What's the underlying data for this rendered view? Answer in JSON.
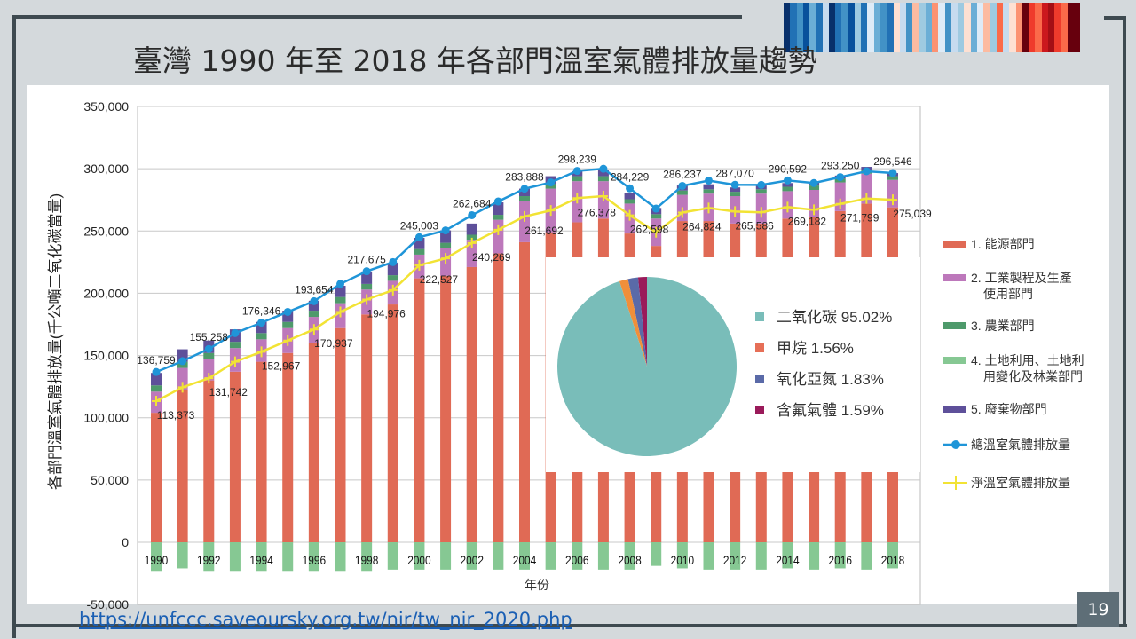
{
  "slide": {
    "title": "臺灣 1990 年至 2018 年各部門溫室氣體排放量趨勢",
    "source_url": "https://unfccc.saveoursky.org.tw/nir/tw_nir_2020.php",
    "page_number": "19",
    "warming_stripes_colors": [
      "#08306b",
      "#2171b5",
      "#4292c6",
      "#08519c",
      "#6baed6",
      "#2171b5",
      "#c6dbef",
      "#08306b",
      "#2171b5",
      "#4292c6",
      "#08519c",
      "#9ecae1",
      "#2171b5",
      "#deebf7",
      "#6baed6",
      "#4292c6",
      "#2171b5",
      "#fee0d2",
      "#c6dbef",
      "#4292c6",
      "#fcbba1",
      "#9ecae1",
      "#6baed6",
      "#fc9272",
      "#deebf7",
      "#4292c6",
      "#c6dbef",
      "#9ecae1",
      "#fee0d2",
      "#6baed6",
      "#deebf7",
      "#fcbba1",
      "#9ecae1",
      "#fb6a4a",
      "#c6dbef",
      "#fee0d2",
      "#fc9272",
      "#67000d",
      "#ef3b2c",
      "#fb6a4a",
      "#cb181d",
      "#a50f15",
      "#ef3b2c",
      "#fb6a4a",
      "#67000d",
      "#67000d"
    ]
  },
  "chart_data": {
    "type": "bar",
    "stacked": true,
    "title": "",
    "xlabel": "年份",
    "ylabel": "各部門溫室氣體排放量(千公噸二氧化碳當量)",
    "ylim": [
      -50000,
      350000
    ],
    "yticks": [
      -50000,
      0,
      50000,
      100000,
      150000,
      200000,
      250000,
      300000,
      350000
    ],
    "ytick_labels": [
      "-50,000",
      "0",
      "50,000",
      "100,000",
      "150,000",
      "200,000",
      "250,000",
      "300,000",
      "350,000"
    ],
    "grid": true,
    "legend_position": "right",
    "categories": [
      1990,
      1991,
      1992,
      1993,
      1994,
      1995,
      1996,
      1997,
      1998,
      1999,
      2000,
      2001,
      2002,
      2003,
      2004,
      2005,
      2006,
      2007,
      2008,
      2009,
      2010,
      2011,
      2012,
      2013,
      2014,
      2015,
      2016,
      2017,
      2018
    ],
    "xtick_labels": [
      "1990",
      "1992",
      "1994",
      "1996",
      "1998",
      "2000",
      "2002",
      "2004",
      "2006",
      "2008",
      "2010",
      "2012",
      "2014",
      "2016",
      "2018"
    ],
    "series": [
      {
        "name": "1. 能源部門",
        "color": "#e06a55",
        "type": "bar",
        "values": [
          104000,
          122000,
          130000,
          137000,
          145000,
          152000,
          160000,
          172000,
          183000,
          191000,
          212000,
          214000,
          221000,
          232000,
          241000,
          249000,
          257000,
          260000,
          248000,
          238000,
          258000,
          258000,
          256000,
          256000,
          260000,
          261000,
          266000,
          272000,
          269000
        ]
      },
      {
        "name": "2. 工業製程及生產使用部門",
        "color": "#bd78bb",
        "type": "bar",
        "values": [
          17000,
          18000,
          17000,
          19000,
          18000,
          20000,
          21000,
          20000,
          20000,
          19000,
          19000,
          22000,
          22000,
          27000,
          33000,
          35000,
          33000,
          30000,
          24000,
          22000,
          21000,
          22000,
          22000,
          24000,
          22000,
          22000,
          23000,
          24000,
          22000
        ]
      },
      {
        "name": "3. 農業部門",
        "color": "#4e9a6b",
        "type": "bar",
        "values": [
          5000,
          5000,
          5000,
          5000,
          5000,
          5000,
          5000,
          5000,
          4500,
          4500,
          4500,
          4500,
          4000,
          4000,
          4000,
          4000,
          4000,
          4000,
          3500,
          3500,
          3500,
          3500,
          3500,
          3500,
          3500,
          3500,
          3000,
          3000,
          3000
        ]
      },
      {
        "name": "4. 土地利用、土地利用變化及林業部門",
        "color": "#86c893",
        "type": "bar",
        "values": [
          -23000,
          -21000,
          -23000,
          -23000,
          -23000,
          -23000,
          -23000,
          -23000,
          -23000,
          -22000,
          -22000,
          -22000,
          -22000,
          -22000,
          -22000,
          -22000,
          -22000,
          -22000,
          -22000,
          -19000,
          -21000,
          -22000,
          -22000,
          -22000,
          -21000,
          -22000,
          -21000,
          -22000,
          -21000
        ]
      },
      {
        "name": "5. 廢棄物部門",
        "color": "#5e509a",
        "type": "bar",
        "values": [
          10000,
          10000,
          10000,
          10000,
          9000,
          9000,
          8000,
          9000,
          10000,
          10000,
          9000,
          10000,
          9000,
          10000,
          6000,
          6000,
          4000,
          5000,
          5000,
          5000,
          4000,
          4000,
          3500,
          3000,
          3000,
          2500,
          2500,
          2500,
          2500
        ]
      },
      {
        "name": "總溫室氣體排放量",
        "color": "#1f95d8",
        "type": "line",
        "marker": "circle",
        "values": [
          136759,
          145500,
          155258,
          168000,
          176346,
          185000,
          193654,
          207500,
          217675,
          225000,
          245003,
          250500,
          262684,
          273700,
          283888,
          289000,
          298239,
          300000,
          284229,
          268000,
          286237,
          290500,
          287070,
          287000,
          290592,
          288500,
          293250,
          298000,
          296546
        ]
      },
      {
        "name": "淨溫室氣體排放量",
        "color": "#f2e334",
        "type": "line",
        "marker": "plus",
        "values": [
          113373,
          124500,
          131742,
          145000,
          152967,
          162000,
          170937,
          185000,
          194976,
          202500,
          222527,
          228000,
          240269,
          251000,
          261692,
          266500,
          276378,
          278000,
          262598,
          249000,
          264824,
          268500,
          265586,
          265000,
          269182,
          267000,
          271799,
          276000,
          275039
        ]
      }
    ],
    "data_labels": {
      "total": [
        {
          "year": 1990,
          "text": "136,759"
        },
        {
          "year": 1992,
          "text": "155,258"
        },
        {
          "year": 1994,
          "text": "176,346"
        },
        {
          "year": 1996,
          "text": "193,654"
        },
        {
          "year": 1998,
          "text": "217,675"
        },
        {
          "year": 2000,
          "text": "245,003"
        },
        {
          "year": 2002,
          "text": "262,684"
        },
        {
          "year": 2004,
          "text": "283,888"
        },
        {
          "year": 2006,
          "text": "298,239"
        },
        {
          "year": 2008,
          "text": "284,229"
        },
        {
          "year": 2010,
          "text": "286,237"
        },
        {
          "year": 2012,
          "text": "287,070"
        },
        {
          "year": 2014,
          "text": "290,592"
        },
        {
          "year": 2016,
          "text": "293,250"
        },
        {
          "year": 2018,
          "text": "296,546"
        }
      ],
      "net": [
        {
          "year": 1990,
          "text": "113,373"
        },
        {
          "year": 1992,
          "text": "131,742"
        },
        {
          "year": 1994,
          "text": "152,967"
        },
        {
          "year": 1996,
          "text": "170,937"
        },
        {
          "year": 1998,
          "text": "194,976"
        },
        {
          "year": 2000,
          "text": "222,527"
        },
        {
          "year": 2002,
          "text": "240,269"
        },
        {
          "year": 2004,
          "text": "261,692"
        },
        {
          "year": 2006,
          "text": "276,378"
        },
        {
          "year": 2008,
          "text": "262,598"
        },
        {
          "year": 2010,
          "text": "264,824"
        },
        {
          "year": 2012,
          "text": "265,586"
        },
        {
          "year": 2014,
          "text": "269,182"
        },
        {
          "year": 2016,
          "text": "271,799"
        },
        {
          "year": 2018,
          "text": "275,039"
        }
      ]
    },
    "inset_pie": {
      "type": "pie",
      "slices": [
        {
          "label": "二氧化碳",
          "value": 95.02,
          "display": "二氧化碳  95.02%",
          "color": "#79bdb9"
        },
        {
          "label": "甲烷",
          "value": 1.56,
          "display": "甲烷 1.56%",
          "color": "#f08f3a",
          "legend_color": "#e66f57"
        },
        {
          "label": "氧化亞氮",
          "value": 1.83,
          "display": "氧化亞氮  1.83%",
          "color": "#5a6aa8"
        },
        {
          "label": "含氟氣體",
          "value": 1.59,
          "display": "含氟氣體  1.59%",
          "color": "#9a1a5a"
        }
      ]
    }
  }
}
